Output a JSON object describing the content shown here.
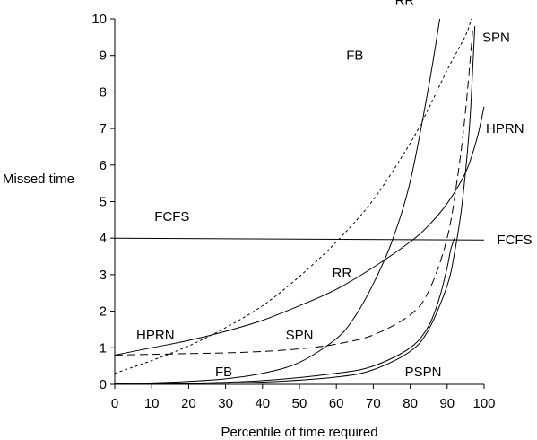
{
  "chart_data": {
    "type": "line",
    "title": "",
    "xlabel": "Percentile of time required",
    "ylabel": "Missed time",
    "xlim": [
      0,
      100
    ],
    "ylim": [
      0,
      10
    ],
    "xticks": [
      0,
      10,
      20,
      30,
      40,
      50,
      60,
      70,
      80,
      90,
      100
    ],
    "yticks": [
      0,
      1,
      2,
      3,
      4,
      5,
      6,
      7,
      8,
      9,
      10
    ],
    "grid": false,
    "legend": "none",
    "series": [
      {
        "name": "FCFS",
        "style": "solid",
        "x": [
          0,
          100
        ],
        "y": [
          4.0,
          3.95
        ]
      },
      {
        "name": "HPRN",
        "style": "solid",
        "x": [
          0,
          10,
          20,
          30,
          40,
          50,
          60,
          70,
          80,
          85,
          90,
          95,
          98,
          100
        ],
        "y": [
          0.8,
          1.0,
          1.2,
          1.45,
          1.75,
          2.15,
          2.6,
          3.2,
          3.9,
          4.35,
          4.95,
          5.8,
          6.7,
          7.6
        ]
      },
      {
        "name": "RR",
        "style": "dotted",
        "x": [
          0,
          10,
          20,
          30,
          40,
          50,
          60,
          70,
          80,
          85,
          90,
          95,
          96.5
        ],
        "y": [
          0.3,
          0.65,
          1.05,
          1.55,
          2.15,
          2.95,
          3.9,
          5.05,
          6.6,
          7.55,
          8.6,
          9.55,
          10.0
        ]
      },
      {
        "name": "RR",
        "style": "solid",
        "x": [
          0,
          10,
          20,
          30,
          40,
          50,
          60,
          65,
          70,
          75,
          80,
          85,
          88
        ],
        "y": [
          0.02,
          0.04,
          0.08,
          0.15,
          0.3,
          0.6,
          1.25,
          1.85,
          2.75,
          3.9,
          5.55,
          8.15,
          10.0
        ]
      },
      {
        "name": "SPN",
        "style": "dashed",
        "x": [
          0,
          10,
          20,
          30,
          40,
          50,
          60,
          70,
          80,
          85,
          90,
          93,
          95,
          97
        ],
        "y": [
          0.8,
          0.82,
          0.84,
          0.86,
          0.9,
          0.97,
          1.1,
          1.35,
          1.9,
          2.55,
          4.0,
          5.8,
          7.5,
          9.8
        ]
      },
      {
        "name": "SPN",
        "style": "solid",
        "x": [
          0,
          20,
          40,
          60,
          70,
          80,
          85,
          90,
          92,
          94,
          96,
          97,
          97.5
        ],
        "y": [
          0.0,
          0.02,
          0.06,
          0.2,
          0.4,
          0.9,
          1.5,
          2.7,
          3.6,
          4.9,
          7.0,
          8.8,
          9.8
        ]
      },
      {
        "name": "PSPN",
        "style": "solid",
        "x": [
          0,
          20,
          40,
          60,
          70,
          80,
          85,
          88,
          90,
          91,
          92
        ],
        "y": [
          0.0,
          0.03,
          0.1,
          0.3,
          0.5,
          1.0,
          1.6,
          2.4,
          3.2,
          3.7,
          4.0
        ]
      }
    ],
    "annotations": [
      {
        "text": "RR",
        "x": 78.5,
        "y": 10.5,
        "anchor": "middle"
      },
      {
        "text": "FB",
        "x": 65,
        "y": 9.0,
        "anchor": "middle"
      },
      {
        "text": "SPN",
        "x": 99.5,
        "y": 9.5,
        "anchor": "start"
      },
      {
        "text": "HPRN",
        "x": 100.5,
        "y": 7.0,
        "anchor": "start"
      },
      {
        "text": "FCFS",
        "x": 15.5,
        "y": 4.6,
        "anchor": "middle"
      },
      {
        "text": "FCFS",
        "x": 103.5,
        "y": 3.95,
        "anchor": "start"
      },
      {
        "text": "RR",
        "x": 61.5,
        "y": 3.05,
        "anchor": "middle"
      },
      {
        "text": "HPRN",
        "x": 11,
        "y": 1.35,
        "anchor": "middle"
      },
      {
        "text": "SPN",
        "x": 50,
        "y": 1.35,
        "anchor": "middle"
      },
      {
        "text": "FB",
        "x": 29.5,
        "y": 0.35,
        "anchor": "middle"
      },
      {
        "text": "PSPN",
        "x": 83.5,
        "y": 0.35,
        "anchor": "middle"
      }
    ]
  }
}
